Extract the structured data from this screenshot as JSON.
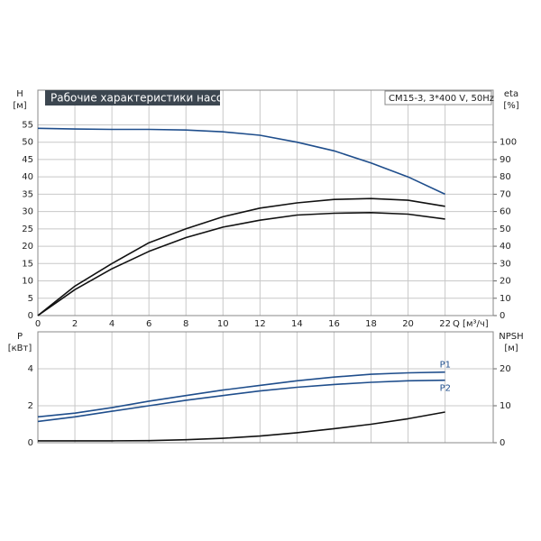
{
  "chart_data": [
    {
      "type": "line",
      "title": "Рабочие характеристики насоса",
      "subtitle": "CM15-3, 3*400 V, 50Hz",
      "y_label": "H",
      "y_unit": "[м]",
      "y2_label": "eta",
      "y2_unit": "[%]",
      "x_label": "Q [м³/ч]",
      "x": [
        0,
        2,
        4,
        6,
        8,
        10,
        12,
        14,
        16,
        18,
        20,
        22
      ],
      "xlim": [
        0,
        24.6
      ],
      "xticks": [
        0,
        2,
        4,
        6,
        8,
        10,
        12,
        14,
        16,
        18,
        20,
        22
      ],
      "ylim": [
        0,
        65
      ],
      "yticks": [
        0,
        5,
        10,
        15,
        20,
        25,
        30,
        35,
        40,
        45,
        50,
        55
      ],
      "y2lim": [
        0,
        130
      ],
      "y2ticks": [
        0,
        10,
        20,
        30,
        40,
        50,
        60,
        70,
        80,
        90,
        100
      ],
      "grid": true,
      "series": [
        {
          "color": "#1f4e8c",
          "values": [
            54,
            53.8,
            53.7,
            53.7,
            53.5,
            53,
            52,
            50,
            47.5,
            44,
            40,
            35
          ]
        },
        {
          "color": "#111111",
          "axis": "y2",
          "values": [
            0,
            17,
            30,
            42,
            50,
            57,
            62,
            65,
            67,
            67.5,
            66.5,
            63
          ]
        },
        {
          "color": "#111111",
          "axis": "y2",
          "values": [
            0,
            15,
            27,
            37,
            45,
            51,
            55,
            58,
            59,
            59.4,
            58.5,
            55.7
          ]
        }
      ]
    },
    {
      "type": "line",
      "y_label": "P",
      "y_unit": "[кВт]",
      "y2_label": "NPSH",
      "y2_unit": "[м]",
      "x": [
        0,
        2,
        4,
        6,
        8,
        10,
        12,
        14,
        16,
        18,
        20,
        22
      ],
      "xlim": [
        0,
        24.6
      ],
      "xticks": [
        0,
        2,
        4,
        6,
        8,
        10,
        12,
        14,
        16,
        18,
        20,
        22
      ],
      "ylim": [
        0,
        6
      ],
      "yticks": [
        0,
        2,
        4
      ],
      "y2lim": [
        0,
        30
      ],
      "y2ticks": [
        0,
        10,
        20
      ],
      "grid": true,
      "series": [
        {
          "name": "P1",
          "color": "#1f4e8c",
          "values": [
            1.4,
            1.6,
            1.9,
            2.25,
            2.55,
            2.85,
            3.1,
            3.35,
            3.55,
            3.7,
            3.78,
            3.82
          ]
        },
        {
          "name": "P2",
          "color": "#1f4e8c",
          "values": [
            1.15,
            1.4,
            1.7,
            2.0,
            2.3,
            2.55,
            2.8,
            3.0,
            3.15,
            3.27,
            3.35,
            3.38
          ]
        },
        {
          "color": "#111111",
          "axis": "y2",
          "values": [
            0.5,
            0.5,
            0.5,
            0.55,
            0.8,
            1.2,
            1.8,
            2.7,
            3.8,
            5,
            6.5,
            8.3
          ]
        }
      ]
    }
  ]
}
